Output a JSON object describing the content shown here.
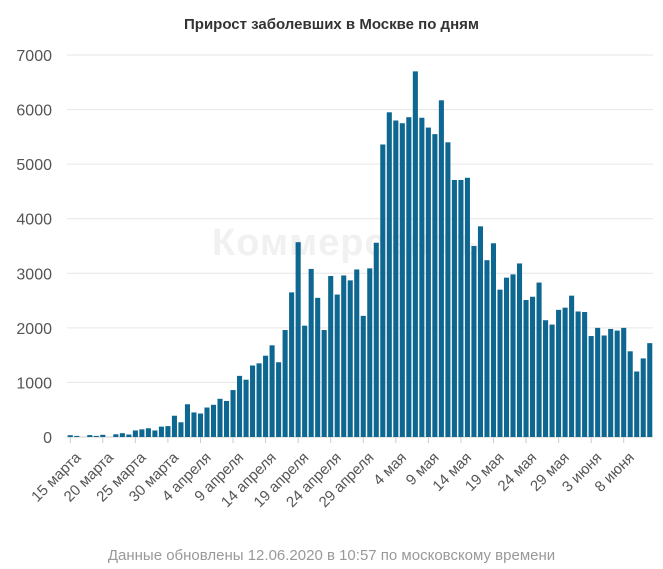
{
  "chart_data": {
    "type": "bar",
    "title": "Прирост заболевших в Москве по дням",
    "xlabel": "",
    "ylabel": "",
    "ylim": [
      0,
      7000
    ],
    "yticks": [
      0,
      1000,
      2000,
      3000,
      4000,
      5000,
      6000,
      7000
    ],
    "grid": true,
    "legend": "none",
    "bar_color": "#0d6790",
    "categories": [
      "15 марта",
      "16 марта",
      "17 марта",
      "18 марта",
      "19 марта",
      "20 марта",
      "21 марта",
      "22 марта",
      "23 марта",
      "24 марта",
      "25 марта",
      "26 марта",
      "27 марта",
      "28 марта",
      "29 марта",
      "30 марта",
      "31 марта",
      "1 апреля",
      "2 апреля",
      "3 апреля",
      "4 апреля",
      "5 апреля",
      "6 апреля",
      "7 апреля",
      "8 апреля",
      "9 апреля",
      "10 апреля",
      "11 апреля",
      "12 апреля",
      "13 апреля",
      "14 апреля",
      "15 апреля",
      "16 апреля",
      "17 апреля",
      "18 апреля",
      "19 апреля",
      "20 апреля",
      "21 апреля",
      "22 апреля",
      "23 апреля",
      "24 апреля",
      "25 апреля",
      "26 апреля",
      "27 апреля",
      "28 апреля",
      "29 апреля",
      "30 апреля",
      "1 мая",
      "2 мая",
      "3 мая",
      "4 мая",
      "5 мая",
      "6 мая",
      "7 мая",
      "8 мая",
      "9 мая",
      "10 мая",
      "11 мая",
      "12 мая",
      "13 мая",
      "14 мая",
      "15 мая",
      "16 мая",
      "17 мая",
      "18 мая",
      "19 мая",
      "20 мая",
      "21 мая",
      "22 мая",
      "23 мая",
      "24 мая",
      "25 мая",
      "26 мая",
      "27 мая",
      "28 мая",
      "29 мая",
      "30 мая",
      "31 мая",
      "1 июня",
      "2 июня",
      "3 июня",
      "4 июня",
      "5 июня",
      "6 июня",
      "7 июня",
      "8 июня",
      "9 июня",
      "10 июня",
      "11 июня",
      "12 июня"
    ],
    "values": [
      33,
      20,
      0,
      35,
      20,
      40,
      0,
      50,
      70,
      45,
      120,
      140,
      160,
      120,
      190,
      200,
      390,
      270,
      600,
      450,
      430,
      540,
      590,
      700,
      660,
      860,
      1120,
      1050,
      1310,
      1350,
      1490,
      1680,
      1370,
      1960,
      2650,
      3570,
      2040,
      3080,
      2550,
      1960,
      2950,
      2610,
      2960,
      2870,
      3070,
      2220,
      3090,
      3560,
      5360,
      5950,
      5800,
      5750,
      5860,
      6700,
      5850,
      5670,
      5550,
      6170,
      5400,
      4710,
      4710,
      4750,
      3500,
      3860,
      3240,
      3550,
      2700,
      2920,
      2980,
      3180,
      2510,
      2570,
      2830,
      2140,
      2060,
      2330,
      2370,
      2590,
      2300,
      2290,
      1850,
      2000,
      1860,
      1980,
      1950,
      2000,
      1570,
      1200,
      1440,
      1720
    ],
    "xtick_labels": [
      {
        "index": 0,
        "label": "15 марта"
      },
      {
        "index": 5,
        "label": "20 марта"
      },
      {
        "index": 10,
        "label": "25 марта"
      },
      {
        "index": 15,
        "label": "30 марта"
      },
      {
        "index": 20,
        "label": "4 апреля"
      },
      {
        "index": 25,
        "label": "9 апреля"
      },
      {
        "index": 30,
        "label": "14 апреля"
      },
      {
        "index": 35,
        "label": "19 апреля"
      },
      {
        "index": 40,
        "label": "24 апреля"
      },
      {
        "index": 45,
        "label": "29 апреля"
      },
      {
        "index": 50,
        "label": "4 мая"
      },
      {
        "index": 55,
        "label": "9 мая"
      },
      {
        "index": 60,
        "label": "14 мая"
      },
      {
        "index": 65,
        "label": "19 мая"
      },
      {
        "index": 70,
        "label": "24 мая"
      },
      {
        "index": 75,
        "label": "29 мая"
      },
      {
        "index": 80,
        "label": "3 июня"
      },
      {
        "index": 85,
        "label": "8 июня"
      }
    ]
  },
  "watermark": "Коммерсантъ",
  "footer": "Данные обновлены 12.06.2020 в 10:57 по московскому времени"
}
